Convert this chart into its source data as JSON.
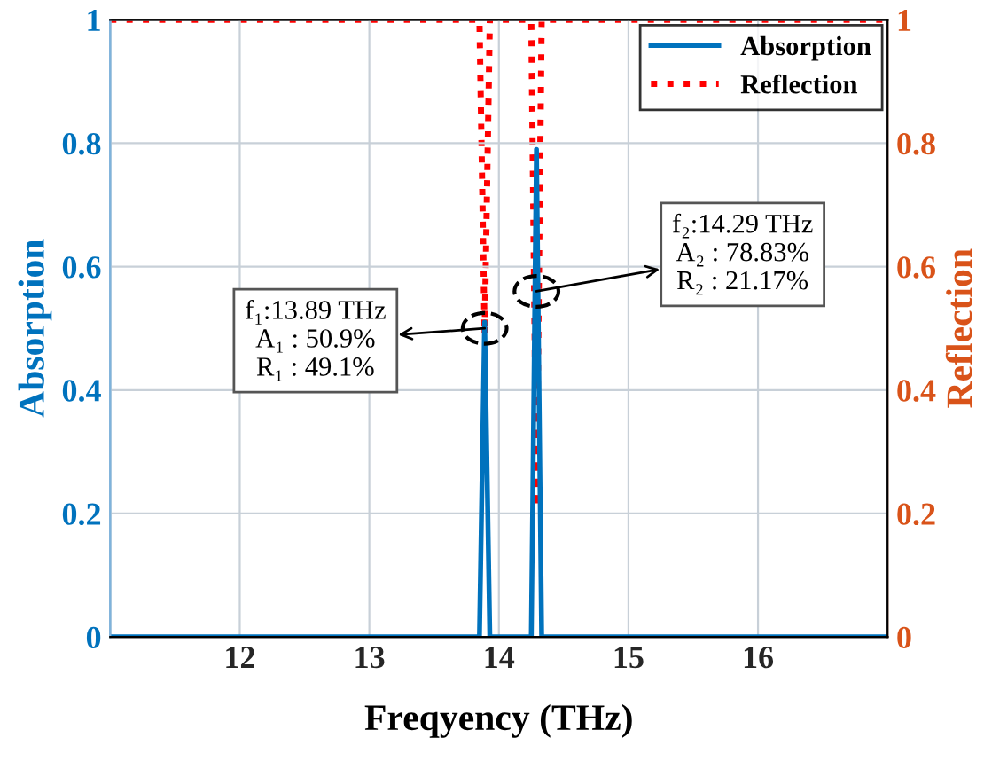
{
  "chart_data": {
    "type": "line",
    "xlabel": "Freqyency (THz)",
    "ylabel": "Absorption",
    "y2label": "Reflection",
    "xlim": [
      11,
      17
    ],
    "xticks": [
      {
        "value": 11,
        "label": null
      },
      12,
      13,
      14,
      15,
      16,
      {
        "value": 17,
        "label": null
      }
    ],
    "ylim": [
      0,
      1
    ],
    "yticks": [
      0,
      0.2,
      0.4,
      0.6,
      0.8,
      1
    ],
    "y2lim": [
      0,
      1
    ],
    "y2ticks": [
      0,
      0.2,
      0.4,
      0.6,
      0.8,
      1
    ],
    "grid": true,
    "legend": "top right",
    "marker": "none",
    "series": [
      {
        "name": "Absorption",
        "color": "#0072bd",
        "line_style": "solid",
        "x": [
          11,
          13.85,
          13.89,
          13.93,
          14.25,
          14.29,
          14.33,
          17
        ],
        "values": [
          0,
          0,
          0.51,
          0,
          0,
          0.79,
          0,
          0
        ]
      },
      {
        "name": "Reflection",
        "color": "#ff0000",
        "line_style": "dotted",
        "axis": "y2",
        "x": [
          11,
          13.85,
          13.89,
          13.93,
          14.25,
          14.29,
          14.33,
          17
        ],
        "values": [
          1,
          1,
          0.49,
          1,
          1,
          0.21,
          1,
          1
        ]
      }
    ],
    "annotations": [
      {
        "text": "f₁:13.89 THz\nA₁ : 50.9%\nR₁ : 49.1%",
        "x": 13.89,
        "y": 0.5
      },
      {
        "text": "f₂:14.29 THz\nA₂ : 78.83%\nR₂ : 21.17%",
        "x": 14.29,
        "y": 0.56
      }
    ]
  }
}
